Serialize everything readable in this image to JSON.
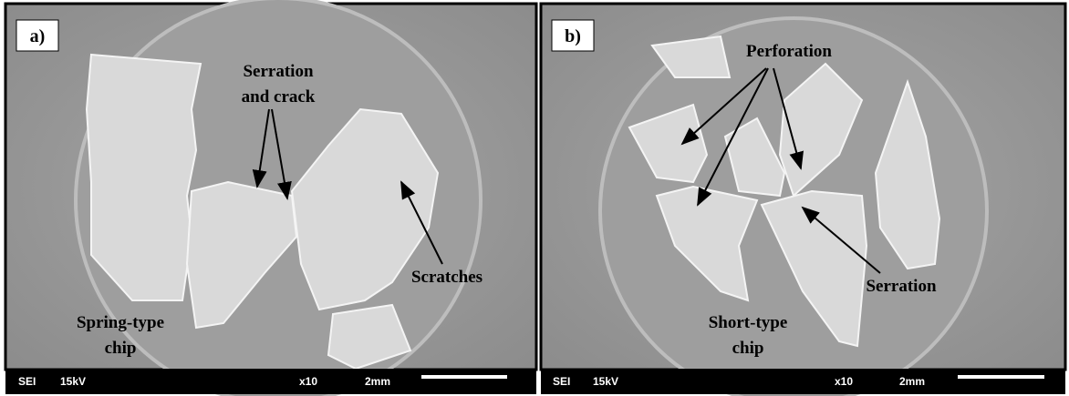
{
  "panels": [
    {
      "label": "a)",
      "annotations": {
        "serration": [
          "Serration",
          "and crack"
        ],
        "scratches": "Scratches",
        "chip": [
          "Spring-type",
          "chip"
        ]
      },
      "footer": {
        "mode": "SEI",
        "voltage": "15kV",
        "magnification": "x10",
        "scale": "2mm"
      }
    },
    {
      "label": "b)",
      "annotations": {
        "perforation": "Perforation",
        "serration": "Serration",
        "chip": [
          "Short-type",
          "chip"
        ]
      },
      "footer": {
        "mode": "SEI",
        "voltage": "15kV",
        "magnification": "x10",
        "scale": "2mm"
      }
    }
  ]
}
